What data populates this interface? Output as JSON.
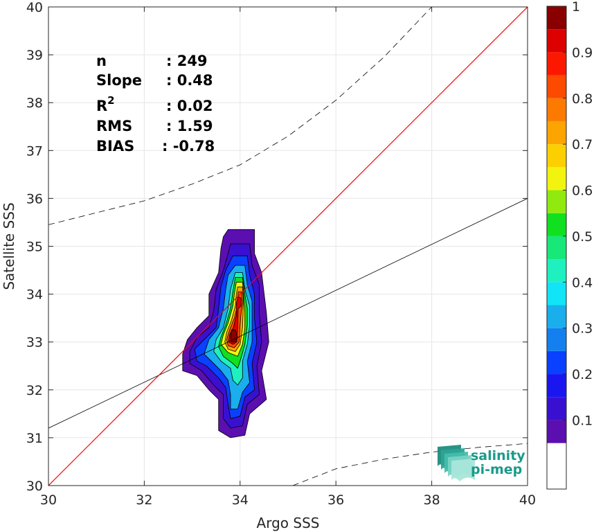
{
  "chart_data": {
    "type": "contour-density-scatter",
    "xlabel": "Argo SSS",
    "ylabel": "Satellite SSS",
    "xlim": [
      30,
      40
    ],
    "ylim": [
      30,
      40
    ],
    "x_ticks": [
      30,
      32,
      34,
      36,
      38,
      40
    ],
    "y_ticks": [
      30,
      31,
      32,
      33,
      34,
      35,
      36,
      37,
      38,
      39,
      40
    ],
    "grid": true,
    "stats": [
      {
        "label": "n",
        "value": ": 249"
      },
      {
        "label": "Slope",
        "value": ": 0.48"
      },
      {
        "label": "R",
        "sup": "2",
        "value": ": 0.02"
      },
      {
        "label": "RMS",
        "value": ": 1.59"
      },
      {
        "label": "BIAS",
        "value": ": -0.78"
      }
    ],
    "identity_line": {
      "color": "#ff0000",
      "from": [
        30,
        30
      ],
      "to": [
        40,
        40
      ]
    },
    "fit_line": {
      "color": "#000000",
      "from": [
        30,
        31.2
      ],
      "to": [
        40,
        36.0
      ]
    },
    "confidence_upper": [
      [
        30,
        35.45
      ],
      [
        31,
        35.7
      ],
      [
        32,
        35.95
      ],
      [
        33,
        36.3
      ],
      [
        34,
        36.7
      ],
      [
        35,
        37.3
      ],
      [
        36,
        38.05
      ],
      [
        37,
        38.95
      ],
      [
        38,
        40.0
      ],
      [
        38.55,
        40.0
      ]
    ],
    "confidence_lower": [
      [
        35.1,
        30.0
      ],
      [
        36,
        30.35
      ],
      [
        37,
        30.55
      ],
      [
        38,
        30.7
      ],
      [
        39,
        30.8
      ],
      [
        40,
        30.88
      ]
    ],
    "density_levels": [
      {
        "level": 0.05,
        "points": [
          [
            33.75,
            35.35
          ],
          [
            34.3,
            35.35
          ],
          [
            34.3,
            34.85
          ],
          [
            34.45,
            34.45
          ],
          [
            34.55,
            33.6
          ],
          [
            34.6,
            33.0
          ],
          [
            34.45,
            32.4
          ],
          [
            34.55,
            31.8
          ],
          [
            34.2,
            31.5
          ],
          [
            34.1,
            31.05
          ],
          [
            33.8,
            31.0
          ],
          [
            33.55,
            31.15
          ],
          [
            33.55,
            31.8
          ],
          [
            33.35,
            32.0
          ],
          [
            33.1,
            32.3
          ],
          [
            32.8,
            32.4
          ],
          [
            32.8,
            32.75
          ],
          [
            32.9,
            33.05
          ],
          [
            33.1,
            33.3
          ],
          [
            33.35,
            33.55
          ],
          [
            33.35,
            34.0
          ],
          [
            33.55,
            34.45
          ],
          [
            33.6,
            34.95
          ],
          [
            33.65,
            35.2
          ]
        ]
      },
      {
        "level": 0.1,
        "points": [
          [
            33.8,
            35.05
          ],
          [
            34.2,
            35.05
          ],
          [
            34.25,
            34.6
          ],
          [
            34.4,
            34.2
          ],
          [
            34.4,
            33.6
          ],
          [
            34.45,
            33.0
          ],
          [
            34.35,
            32.5
          ],
          [
            34.4,
            31.9
          ],
          [
            34.15,
            31.7
          ],
          [
            34.05,
            31.25
          ],
          [
            33.8,
            31.2
          ],
          [
            33.65,
            31.4
          ],
          [
            33.65,
            31.9
          ],
          [
            33.45,
            32.1
          ],
          [
            33.2,
            32.4
          ],
          [
            32.95,
            32.55
          ],
          [
            32.95,
            32.8
          ],
          [
            33.1,
            33.1
          ],
          [
            33.35,
            33.3
          ],
          [
            33.45,
            33.65
          ],
          [
            33.5,
            34.1
          ],
          [
            33.65,
            34.5
          ],
          [
            33.75,
            34.85
          ]
        ]
      },
      {
        "level": 0.2,
        "points": [
          [
            33.85,
            34.8
          ],
          [
            34.15,
            34.8
          ],
          [
            34.2,
            34.4
          ],
          [
            34.3,
            34.0
          ],
          [
            34.3,
            33.5
          ],
          [
            34.35,
            33.0
          ],
          [
            34.25,
            32.55
          ],
          [
            34.3,
            32.0
          ],
          [
            34.1,
            31.85
          ],
          [
            34.0,
            31.45
          ],
          [
            33.8,
            31.4
          ],
          [
            33.75,
            31.7
          ],
          [
            33.7,
            32.05
          ],
          [
            33.55,
            32.25
          ],
          [
            33.3,
            32.5
          ],
          [
            33.1,
            32.6
          ],
          [
            33.05,
            32.85
          ],
          [
            33.25,
            33.05
          ],
          [
            33.5,
            33.3
          ],
          [
            33.55,
            33.7
          ],
          [
            33.6,
            34.15
          ],
          [
            33.7,
            34.5
          ]
        ]
      },
      {
        "level": 0.3,
        "points": [
          [
            33.9,
            34.6
          ],
          [
            34.1,
            34.6
          ],
          [
            34.15,
            34.2
          ],
          [
            34.25,
            33.85
          ],
          [
            34.25,
            33.4
          ],
          [
            34.25,
            33.0
          ],
          [
            34.15,
            32.6
          ],
          [
            34.2,
            32.15
          ],
          [
            34.05,
            31.95
          ],
          [
            33.95,
            31.6
          ],
          [
            33.8,
            31.6
          ],
          [
            33.8,
            31.9
          ],
          [
            33.75,
            32.2
          ],
          [
            33.6,
            32.4
          ],
          [
            33.4,
            32.6
          ],
          [
            33.25,
            32.75
          ],
          [
            33.35,
            33.05
          ],
          [
            33.55,
            33.3
          ],
          [
            33.65,
            33.7
          ],
          [
            33.7,
            34.1
          ],
          [
            33.75,
            34.4
          ]
        ]
      },
      {
        "level": 0.4,
        "points": [
          [
            33.9,
            34.45
          ],
          [
            34.05,
            34.45
          ],
          [
            34.1,
            34.1
          ],
          [
            34.2,
            33.75
          ],
          [
            34.2,
            33.35
          ],
          [
            34.15,
            32.95
          ],
          [
            34.05,
            32.6
          ],
          [
            34.05,
            32.25
          ],
          [
            33.95,
            32.1
          ],
          [
            33.85,
            32.2
          ],
          [
            33.8,
            32.45
          ],
          [
            33.6,
            32.6
          ],
          [
            33.45,
            32.8
          ],
          [
            33.5,
            33.05
          ],
          [
            33.65,
            33.3
          ],
          [
            33.75,
            33.7
          ],
          [
            33.8,
            34.1
          ]
        ]
      },
      {
        "level": 0.5,
        "points": [
          [
            33.9,
            34.35
          ],
          [
            34.05,
            34.35
          ],
          [
            34.1,
            34.0
          ],
          [
            34.15,
            33.7
          ],
          [
            34.15,
            33.35
          ],
          [
            34.1,
            32.95
          ],
          [
            34.0,
            32.6
          ],
          [
            33.95,
            32.45
          ],
          [
            33.85,
            32.55
          ],
          [
            33.65,
            32.7
          ],
          [
            33.55,
            32.9
          ],
          [
            33.6,
            33.1
          ],
          [
            33.7,
            33.35
          ],
          [
            33.8,
            33.7
          ],
          [
            33.85,
            34.05
          ]
        ]
      },
      {
        "level": 0.6,
        "points": [
          [
            33.92,
            34.25
          ],
          [
            34.05,
            34.25
          ],
          [
            34.08,
            33.95
          ],
          [
            34.1,
            33.6
          ],
          [
            34.1,
            33.3
          ],
          [
            34.05,
            32.95
          ],
          [
            33.95,
            32.7
          ],
          [
            33.75,
            32.78
          ],
          [
            33.6,
            32.95
          ],
          [
            33.65,
            33.15
          ],
          [
            33.75,
            33.4
          ],
          [
            33.85,
            33.75
          ],
          [
            33.88,
            34.0
          ]
        ]
      },
      {
        "level": 0.7,
        "points": [
          [
            33.95,
            34.15
          ],
          [
            34.05,
            34.15
          ],
          [
            34.07,
            33.9
          ],
          [
            34.06,
            33.55
          ],
          [
            34.05,
            33.3
          ],
          [
            34.0,
            32.95
          ],
          [
            33.9,
            32.8
          ],
          [
            33.75,
            32.85
          ],
          [
            33.68,
            33.0
          ],
          [
            33.72,
            33.2
          ],
          [
            33.82,
            33.45
          ],
          [
            33.9,
            33.75
          ],
          [
            33.92,
            34.0
          ]
        ]
      },
      {
        "level": 0.8,
        "points": [
          [
            33.96,
            34.05
          ],
          [
            34.04,
            34.05
          ],
          [
            34.05,
            33.8
          ],
          [
            34.02,
            33.6
          ],
          [
            34.0,
            33.35
          ],
          [
            33.98,
            33.0
          ],
          [
            33.88,
            32.88
          ],
          [
            33.75,
            32.92
          ],
          [
            33.72,
            33.05
          ],
          [
            33.78,
            33.25
          ],
          [
            33.88,
            33.5
          ],
          [
            33.93,
            33.7
          ]
        ]
      },
      {
        "level": 0.9,
        "points": [
          [
            33.95,
            33.95
          ],
          [
            34.02,
            33.92
          ],
          [
            34.02,
            33.75
          ],
          [
            33.96,
            33.7
          ],
          [
            33.95,
            33.3
          ],
          [
            33.93,
            33.0
          ],
          [
            33.85,
            32.95
          ],
          [
            33.76,
            33.0
          ],
          [
            33.78,
            33.15
          ],
          [
            33.86,
            33.3
          ],
          [
            33.92,
            33.55
          ],
          [
            33.92,
            33.8
          ]
        ]
      },
      {
        "level": 0.95,
        "points": [
          [
            33.82,
            33.25
          ],
          [
            33.9,
            33.25
          ],
          [
            33.95,
            33.1
          ],
          [
            33.9,
            33.0
          ],
          [
            33.82,
            33.0
          ],
          [
            33.8,
            33.1
          ]
        ]
      }
    ],
    "colorbar": {
      "ticks": [
        0.1,
        0.2,
        0.3,
        0.4,
        0.5,
        0.6,
        0.7,
        0.8,
        0.9,
        1
      ],
      "tick_labels": [
        "0.1",
        "0.2",
        "0.3",
        "0.4",
        "0.5",
        "0.6",
        "0.7",
        "0.8",
        "0.9",
        "1"
      ],
      "range": [
        -0.05,
        1
      ],
      "bins": [
        {
          "from": -0.05,
          "to": 0.05,
          "color": "#ffffff"
        },
        {
          "from": 0.05,
          "to": 0.1,
          "color": "#5b0fb0"
        },
        {
          "from": 0.1,
          "to": 0.15,
          "color": "#3a10d0"
        },
        {
          "from": 0.15,
          "to": 0.2,
          "color": "#1a16f0"
        },
        {
          "from": 0.2,
          "to": 0.25,
          "color": "#0a40ff"
        },
        {
          "from": 0.25,
          "to": 0.3,
          "color": "#1480f0"
        },
        {
          "from": 0.3,
          "to": 0.35,
          "color": "#1aaeec"
        },
        {
          "from": 0.35,
          "to": 0.4,
          "color": "#10e4f6"
        },
        {
          "from": 0.4,
          "to": 0.45,
          "color": "#1ef0c0"
        },
        {
          "from": 0.45,
          "to": 0.5,
          "color": "#18e878"
        },
        {
          "from": 0.5,
          "to": 0.55,
          "color": "#10e020"
        },
        {
          "from": 0.55,
          "to": 0.6,
          "color": "#90ea10"
        },
        {
          "from": 0.6,
          "to": 0.65,
          "color": "#f2f410"
        },
        {
          "from": 0.65,
          "to": 0.7,
          "color": "#fcd000"
        },
        {
          "from": 0.7,
          "to": 0.75,
          "color": "#fca400"
        },
        {
          "from": 0.75,
          "to": 0.8,
          "color": "#fc7a00"
        },
        {
          "from": 0.8,
          "to": 0.85,
          "color": "#fc4a00"
        },
        {
          "from": 0.85,
          "to": 0.9,
          "color": "#fc1800"
        },
        {
          "from": 0.9,
          "to": 0.95,
          "color": "#dc0000"
        },
        {
          "from": 0.95,
          "to": 1.0,
          "color": "#8a0000"
        }
      ]
    }
  },
  "logo": {
    "line1": "salinity",
    "line2": "pi-mep",
    "color": "#1a9a8a"
  }
}
